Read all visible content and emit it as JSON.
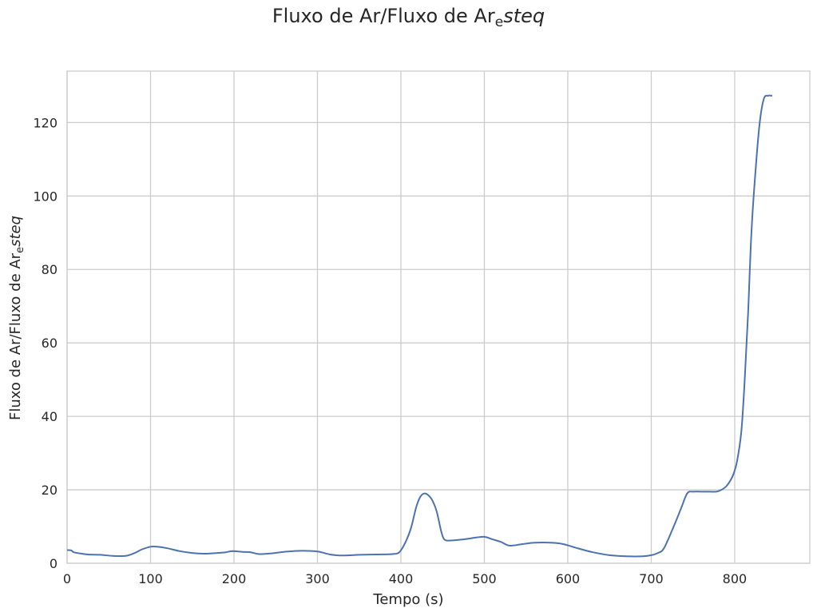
{
  "chart_data": {
    "type": "line",
    "title_main": "Fluxo de Ar/Fluxo de Ar",
    "title_sub": "e",
    "title_italic": "steq",
    "ylabel_main": "Fluxo de Ar/Fluxo de Ar",
    "ylabel_sub": "e",
    "ylabel_italic": "steq",
    "xlabel": "Tempo (s)",
    "xlim": [
      0,
      890
    ],
    "ylim": [
      0,
      134
    ],
    "xticks": [
      0,
      100,
      200,
      300,
      400,
      500,
      600,
      700,
      800
    ],
    "yticks": [
      0,
      20,
      40,
      60,
      80,
      100,
      120
    ],
    "grid": true,
    "line_color": "#4c72b0",
    "series": [
      {
        "x": [
          0,
          5,
          8,
          15,
          25,
          40,
          55,
          70,
          80,
          90,
          100,
          108,
          120,
          135,
          150,
          165,
          180,
          190,
          198,
          210,
          220,
          230,
          245,
          260,
          280,
          300,
          315,
          330,
          350,
          370,
          390,
          398,
          405,
          412,
          418,
          423,
          428,
          433,
          438,
          443,
          448,
          452,
          460,
          475,
          490,
          500,
          510,
          520,
          530,
          545,
          560,
          580,
          595,
          610,
          630,
          650,
          670,
          690,
          700,
          708,
          715,
          725,
          735,
          743,
          750,
          760,
          770,
          780,
          790,
          798,
          803,
          808,
          812,
          816,
          820,
          825,
          830,
          835,
          840,
          845
        ],
        "y": [
          3.6,
          3.5,
          3.0,
          2.7,
          2.4,
          2.3,
          2.0,
          2.0,
          2.7,
          3.8,
          4.5,
          4.5,
          4.1,
          3.3,
          2.8,
          2.6,
          2.8,
          3.0,
          3.3,
          3.1,
          3.0,
          2.5,
          2.7,
          3.1,
          3.4,
          3.2,
          2.4,
          2.1,
          2.3,
          2.4,
          2.5,
          3.0,
          5.5,
          9.5,
          15.0,
          18.0,
          19.0,
          18.5,
          17.0,
          14.0,
          9.0,
          6.5,
          6.2,
          6.5,
          7.0,
          7.2,
          6.5,
          5.8,
          4.8,
          5.2,
          5.6,
          5.6,
          5.2,
          4.2,
          3.0,
          2.2,
          1.9,
          1.9,
          2.2,
          2.8,
          4.0,
          9.0,
          14.5,
          19.0,
          19.5,
          19.5,
          19.5,
          19.6,
          21.0,
          24.0,
          28.0,
          36.0,
          50.0,
          68.0,
          90.0,
          107.0,
          120.0,
          126.5,
          127.3,
          127.3
        ]
      }
    ]
  }
}
